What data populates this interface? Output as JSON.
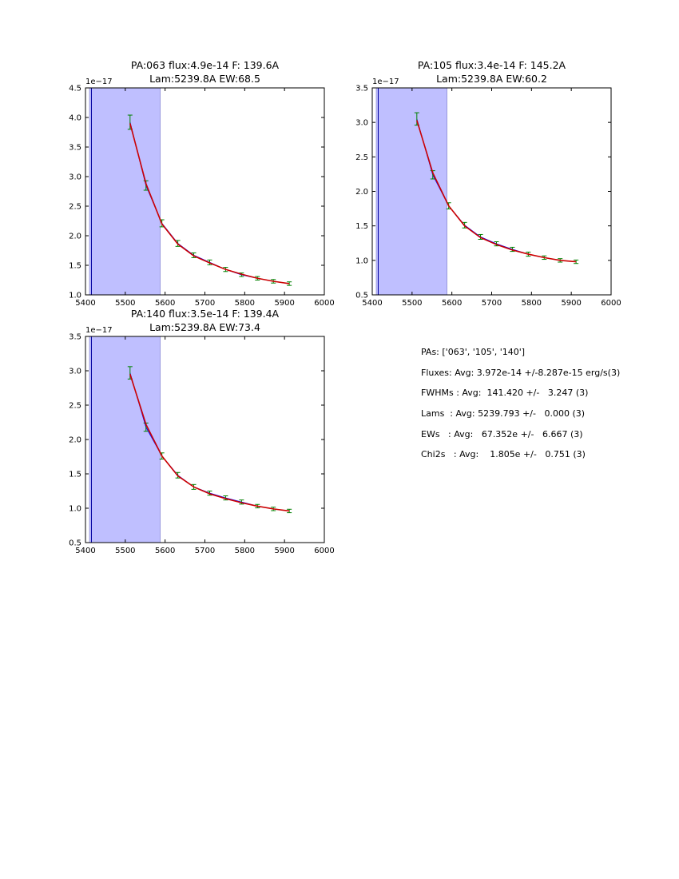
{
  "chart_data": [
    {
      "type": "line",
      "title_line1": "PA:063 flux:4.9e-14 F: 139.6A",
      "title_line2": "Lam:5239.8A EW:68.5",
      "multiplier": "1e−17",
      "xlim": [
        5400,
        6000
      ],
      "ylim": [
        1.0,
        4.5
      ],
      "xticks": [
        "5400",
        "5500",
        "5600",
        "5700",
        "5800",
        "5900",
        "6000"
      ],
      "yticks": [
        "1.0",
        "1.5",
        "2.0",
        "2.5",
        "3.0",
        "3.5",
        "4.0",
        "4.5"
      ],
      "shaded_region": [
        5410,
        5588
      ],
      "vline_x": 5415,
      "x": [
        5512,
        5552,
        5592,
        5632,
        5672,
        5712,
        5752,
        5792,
        5832,
        5872,
        5912
      ],
      "data": [
        3.92,
        2.85,
        2.21,
        1.87,
        1.67,
        1.55,
        1.43,
        1.34,
        1.28,
        1.23,
        1.19
      ],
      "errors": [
        0.12,
        0.08,
        0.06,
        0.05,
        0.04,
        0.04,
        0.035,
        0.03,
        0.03,
        0.03,
        0.03
      ],
      "model": [
        3.9,
        2.88,
        2.2,
        1.86,
        1.66,
        1.54,
        1.43,
        1.35,
        1.28,
        1.23,
        1.19
      ]
    },
    {
      "type": "line",
      "title_line1": "PA:105 flux:3.4e-14 F: 145.2A",
      "title_line2": "Lam:5239.8A EW:60.2",
      "multiplier": "1e−17",
      "xlim": [
        5400,
        6000
      ],
      "ylim": [
        0.5,
        3.5
      ],
      "xticks": [
        "5400",
        "5500",
        "5600",
        "5700",
        "5800",
        "5900",
        "6000"
      ],
      "yticks": [
        "0.5",
        "1.0",
        "1.5",
        "2.0",
        "2.5",
        "3.0",
        "3.5"
      ],
      "shaded_region": [
        5410,
        5588
      ],
      "vline_x": 5415,
      "x": [
        5512,
        5552,
        5592,
        5632,
        5672,
        5712,
        5752,
        5792,
        5832,
        5872,
        5912
      ],
      "data": [
        3.05,
        2.24,
        1.79,
        1.51,
        1.34,
        1.24,
        1.16,
        1.09,
        1.04,
        1.0,
        0.98
      ],
      "errors": [
        0.09,
        0.06,
        0.045,
        0.04,
        0.035,
        0.03,
        0.03,
        0.03,
        0.025,
        0.025,
        0.025
      ],
      "model": [
        3.03,
        2.27,
        1.79,
        1.5,
        1.33,
        1.23,
        1.15,
        1.09,
        1.04,
        1.0,
        0.98
      ]
    },
    {
      "type": "line",
      "title_line1": "PA:140 flux:3.5e-14 F: 139.4A",
      "title_line2": "Lam:5239.8A EW:73.4",
      "multiplier": "1e−17",
      "xlim": [
        5400,
        6000
      ],
      "ylim": [
        0.5,
        3.5
      ],
      "xticks": [
        "5400",
        "5500",
        "5600",
        "5700",
        "5800",
        "5900",
        "6000"
      ],
      "yticks": [
        "0.5",
        "1.0",
        "1.5",
        "2.0",
        "2.5",
        "3.0",
        "3.5"
      ],
      "shaded_region": [
        5410,
        5588
      ],
      "vline_x": 5415,
      "x": [
        5512,
        5552,
        5592,
        5632,
        5672,
        5712,
        5752,
        5792,
        5832,
        5872,
        5912
      ],
      "data": [
        2.97,
        2.18,
        1.76,
        1.48,
        1.31,
        1.22,
        1.15,
        1.09,
        1.03,
        0.99,
        0.96
      ],
      "errors": [
        0.09,
        0.06,
        0.045,
        0.04,
        0.035,
        0.03,
        0.03,
        0.03,
        0.025,
        0.025,
        0.025
      ],
      "model": [
        2.95,
        2.22,
        1.76,
        1.47,
        1.31,
        1.21,
        1.14,
        1.08,
        1.03,
        0.99,
        0.96
      ]
    }
  ],
  "summary": {
    "lines": [
      "PAs: ['063', '105', '140']",
      "Fluxes: Avg: 3.972e-14 +/-8.287e-15 erg/s(3)",
      "FWHMs : Avg:  141.420 +/-   3.247 (3)",
      "Lams  : Avg: 5239.793 +/-   0.000 (3)",
      "EWs   : Avg:   67.352e +/-   6.667 (3)",
      "Chi2s   : Avg:    1.805e +/-   0.751 (3)"
    ]
  }
}
